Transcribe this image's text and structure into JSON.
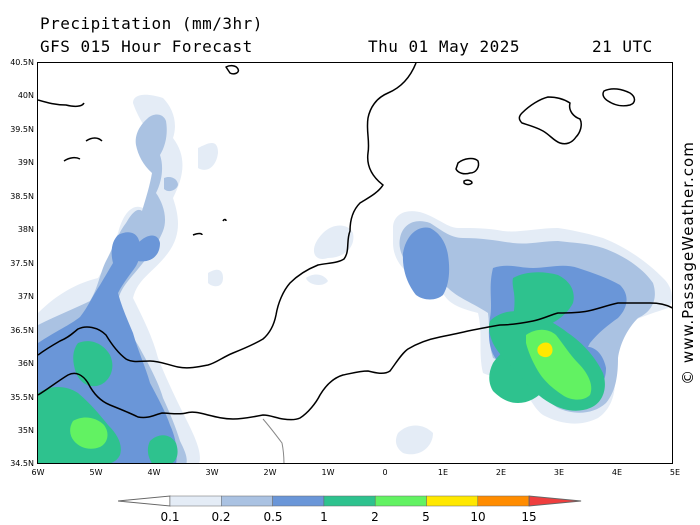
{
  "header": {
    "title": "Precipitation (mm/3hr)",
    "subtitle": "GFS 015 Hour Forecast",
    "date": "Thu 01 May 2025",
    "time": "21 UTC"
  },
  "axes": {
    "lat_labels": [
      "40.5N",
      "40N",
      "39.5N",
      "39N",
      "38.5N",
      "38N",
      "37.5N",
      "37N",
      "36.5N",
      "36N",
      "35.5N",
      "35N",
      "34.5N"
    ],
    "lon_labels": [
      "6W",
      "5W",
      "4W",
      "3W",
      "2W",
      "1W",
      "0",
      "1E",
      "2E",
      "3E",
      "4E",
      "5E"
    ]
  },
  "legend": {
    "labels": [
      "0.1",
      "0.2",
      "0.5",
      "1",
      "2",
      "5",
      "10",
      "15"
    ],
    "colors": [
      "#e4ecf6",
      "#aac2e2",
      "#6a96d8",
      "#2ec28e",
      "#62f262",
      "#ffe800",
      "#ff8c00",
      "#ef3e3e"
    ]
  },
  "credit": "© www.PassageWeather.com"
}
